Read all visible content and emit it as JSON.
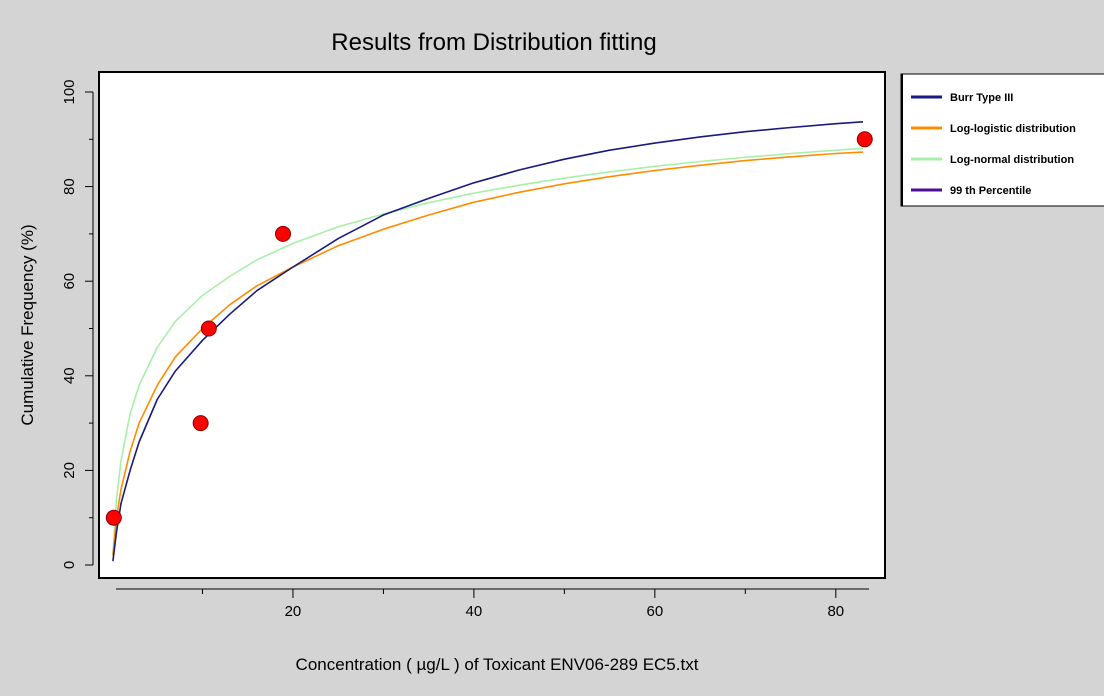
{
  "chart_data": {
    "type": "scatter",
    "title": "Results from Distribution fitting",
    "xlabel": "Concentration ( µg/L ) of Toxicant ENV06-289 EC5.txt",
    "ylabel": "Cumulative Frequency (%)",
    "xlim": [
      0,
      84
    ],
    "ylim": [
      0,
      100
    ],
    "x_major_ticks": [
      20,
      40,
      60,
      80
    ],
    "x_minor_ticks": [
      10,
      30,
      50,
      70
    ],
    "y_ticks": [
      0,
      20,
      40,
      60,
      80,
      100
    ],
    "grid": false,
    "legend_position": "right",
    "points": {
      "color": "#ff0000",
      "x": [
        0.2,
        9.8,
        10.7,
        18.9,
        83.2
      ],
      "y": [
        10,
        30,
        50,
        70,
        90
      ]
    },
    "series": [
      {
        "name": "Burr Type III",
        "color": "#1a1a80",
        "x": [
          0.1,
          0.5,
          1,
          2,
          3,
          5,
          7,
          10,
          13,
          16,
          20,
          25,
          30,
          35,
          40,
          45,
          50,
          55,
          60,
          65,
          70,
          75,
          80,
          83
        ],
        "y": [
          0.8,
          7,
          13,
          20,
          26,
          35,
          41,
          47.5,
          53,
          58,
          63,
          69,
          74,
          77.5,
          80.8,
          83.5,
          85.8,
          87.7,
          89.2,
          90.5,
          91.6,
          92.5,
          93.3,
          93.7
        ]
      },
      {
        "name": "Log-logistic distribution",
        "color": "#ff8c00",
        "x": [
          0.1,
          0.5,
          1,
          2,
          3,
          5,
          7,
          10,
          13,
          16,
          20,
          25,
          30,
          35,
          40,
          45,
          50,
          55,
          60,
          65,
          70,
          75,
          80,
          83
        ],
        "y": [
          2,
          10,
          16,
          24,
          30,
          38,
          44,
          50,
          55,
          59,
          63,
          67.5,
          71,
          74,
          76.7,
          78.8,
          80.6,
          82.1,
          83.4,
          84.5,
          85.5,
          86.3,
          87,
          87.3
        ]
      },
      {
        "name": "Log-normal distribution",
        "color": "#a8f0a8",
        "x": [
          0.1,
          0.5,
          1,
          2,
          3,
          5,
          7,
          10,
          13,
          16,
          20,
          25,
          30,
          35,
          40,
          45,
          50,
          55,
          60,
          65,
          70,
          75,
          80,
          83
        ],
        "y": [
          2,
          14,
          22,
          32,
          38,
          46,
          51.5,
          57,
          61,
          64.5,
          68,
          71.5,
          74.2,
          76.6,
          78.6,
          80.3,
          81.8,
          83.1,
          84.3,
          85.3,
          86.2,
          87,
          87.7,
          88.1
        ]
      },
      {
        "name": "99 th Percentile",
        "color": "#4b0f96",
        "x": [],
        "y": []
      }
    ]
  }
}
